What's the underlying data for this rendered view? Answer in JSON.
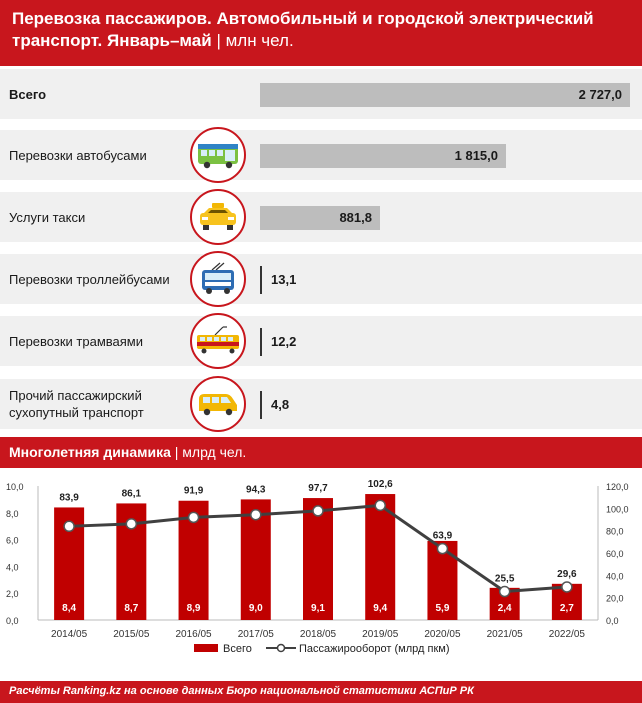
{
  "header": {
    "title": "Перевозка пассажиров. Автомобильный и городской электрический транспорт. Январь–май",
    "separator": "|",
    "unit": "млн чел."
  },
  "rows": [
    {
      "label": "Всего",
      "value": 2727.0,
      "value_text": "2 727,0",
      "icon": ""
    },
    {
      "label": "Перевозки автобусами",
      "value": 1815.0,
      "value_text": "1 815,0",
      "icon": "bus-icon"
    },
    {
      "label": "Услуги такси",
      "value": 881.8,
      "value_text": "881,8",
      "icon": "taxi-icon"
    },
    {
      "label": "Перевозки троллейбусами",
      "value": 13.1,
      "value_text": "13,1",
      "icon": "trolleybus-icon"
    },
    {
      "label": "Перевозки трамваями",
      "value": 12.2,
      "value_text": "12,2",
      "icon": "tram-icon"
    },
    {
      "label": "Прочий пассажирский сухопутный транспорт",
      "value": 4.8,
      "value_text": "4,8",
      "icon": "minibus-icon"
    }
  ],
  "section": {
    "title": "Многолетняя динамика",
    "separator": "|",
    "unit": "млрд чел."
  },
  "chart_data": {
    "type": "bar",
    "categories": [
      "2014/05",
      "2015/05",
      "2016/05",
      "2017/05",
      "2018/05",
      "2019/05",
      "2020/05",
      "2021/05",
      "2022/05"
    ],
    "series": [
      {
        "name": "Всего",
        "type": "bar",
        "axis": "left",
        "values": [
          8.4,
          8.7,
          8.9,
          9.0,
          9.1,
          9.4,
          5.9,
          2.4,
          2.7
        ],
        "labels": [
          "8,4",
          "8,7",
          "8,9",
          "9,0",
          "9,1",
          "9,4",
          "5,9",
          "2,4",
          "2,7"
        ],
        "color": "#c00000"
      },
      {
        "name": "Пассажирооборот (млрд пкм)",
        "type": "line",
        "axis": "right",
        "values": [
          83.9,
          86.1,
          91.9,
          94.3,
          97.7,
          102.6,
          63.9,
          25.5,
          29.6
        ],
        "labels": [
          "83,9",
          "86,1",
          "91,9",
          "94,3",
          "97,7",
          "102,6",
          "63,9",
          "25,5",
          "29,6"
        ],
        "color": "#404040"
      }
    ],
    "ylim_left": [
      0,
      10
    ],
    "yticks_left": [
      "0,0",
      "2,0",
      "4,0",
      "6,0",
      "8,0",
      "10,0"
    ],
    "ylim_right": [
      0,
      120
    ],
    "yticks_right": [
      "0,0",
      "20,0",
      "40,0",
      "60,0",
      "80,0",
      "100,0",
      "120,0"
    ],
    "grid": false,
    "legend": "bottom"
  },
  "footer": {
    "text": "Расчёты Ranking.kz на основе данных Бюро национальной статистики АСПиР РК"
  },
  "colors": {
    "accent": "#c8161d",
    "bar_gray": "#bdbdbd",
    "row_bg": "#f0f0f0",
    "chart_bar": "#c00000",
    "chart_line": "#404040"
  }
}
